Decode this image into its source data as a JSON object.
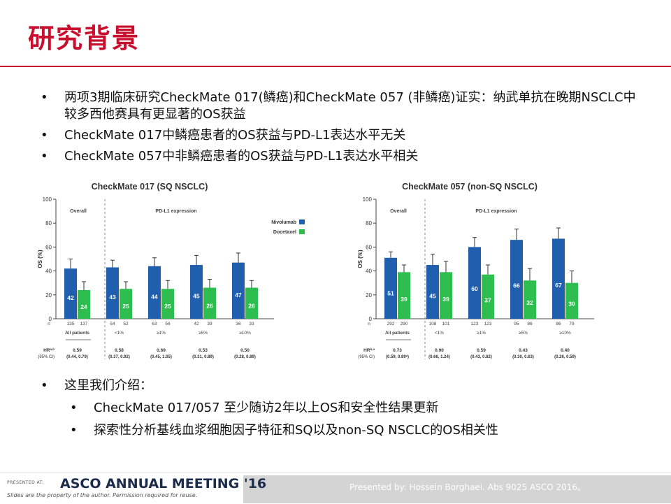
{
  "title": "研究背景",
  "bullets": [
    "两项3期临床研究CheckMate 017(鳞癌)和CheckMate 057 (非鳞癌)证实：纳武单抗在晚期NSCLC中较多西他赛具有更显著的OS获益",
    "CheckMate 017中鳞癌患者的OS获益与PD-L1表达水平无关",
    "CheckMate 057中非鳞癌患者的OS获益与PD-L1表达水平相关"
  ],
  "bullets2": {
    "intro": "这里我们介绍：",
    "items": [
      "CheckMate 017/057 至少随访2年以上OS和安全性结果更新",
      "探索性分析基线血浆细胞因子特征和SQ以及non-SQ NSCLC的OS相关性"
    ]
  },
  "footer": {
    "presented_at": "PRESENTED AT:",
    "meeting": "ASCO ANNUAL MEETING '16",
    "note": "Slides are the property of the author. Permission required for reuse.",
    "presented_by": "Presented by: Hossein Borghaei. Abs 9025 ASCO 2016。"
  },
  "chart_data": [
    {
      "type": "bar",
      "title": "CheckMate 017 (SQ NSCLC)",
      "ylabel": "OS (%)",
      "ylim": [
        0,
        100
      ],
      "yticks": [
        0,
        20,
        40,
        60,
        80,
        100
      ],
      "group_labels": {
        "overall": "Overall",
        "pdl1": "PD-L1 expression"
      },
      "categories": [
        "All patients",
        "<1%",
        "≥1%",
        "≥5%",
        "≥10%"
      ],
      "series": [
        {
          "name": "Nivolumab",
          "color": "#1f5fae",
          "values": [
            42,
            43,
            44,
            45,
            47
          ],
          "err": [
            8,
            6,
            7,
            8,
            8
          ]
        },
        {
          "name": "Docetaxel",
          "color": "#2ebd4f",
          "values": [
            24,
            25,
            25,
            26,
            26
          ],
          "err": [
            7,
            6,
            7,
            7,
            6
          ]
        }
      ],
      "n_label": "n",
      "n": [
        [
          "135",
          "137"
        ],
        [
          "54",
          "52"
        ],
        [
          "63",
          "56"
        ],
        [
          "42",
          "39"
        ],
        [
          "36",
          "33"
        ]
      ],
      "hr_label": "HR",
      "hr_sup": "a,b",
      "ci_label": "(95% CI)",
      "hr": [
        "0.59",
        "0.58",
        "0.69",
        "0.53",
        "0.50"
      ],
      "ci": [
        "(0.44, 0.79)",
        "(0.37, 0.92)",
        "(0.45, 1.05)",
        "(0.31, 0.89)",
        "(0.28, 0.89)"
      ],
      "legend": "top-right"
    },
    {
      "type": "bar",
      "title": "CheckMate 057 (non-SQ NSCLC)",
      "ylabel": "OS (%)",
      "ylim": [
        0,
        100
      ],
      "yticks": [
        0,
        20,
        40,
        60,
        80,
        100
      ],
      "group_labels": {
        "overall": "Overall",
        "pdl1": "PD-L1 expression"
      },
      "categories": [
        "All patients",
        "<1%",
        "≥1%",
        "≥5%",
        "≥10%"
      ],
      "series": [
        {
          "name": "Nivolumab",
          "color": "#1f5fae",
          "values": [
            51,
            45,
            60,
            66,
            67
          ],
          "err": [
            5,
            9,
            8,
            9,
            9
          ]
        },
        {
          "name": "Docetaxel",
          "color": "#2ebd4f",
          "values": [
            39,
            39,
            37,
            32,
            30
          ],
          "err": [
            6,
            9,
            8,
            10,
            10
          ]
        }
      ],
      "n_label": "n",
      "n": [
        [
          "292",
          "290"
        ],
        [
          "108",
          "101"
        ],
        [
          "123",
          "123"
        ],
        [
          "95",
          "86"
        ],
        [
          "86",
          "79"
        ]
      ],
      "hr_label": "HR",
      "hr_sup": "b,a",
      "ci_label": "(95% CI)",
      "hr": [
        "0.73",
        "0.90",
        "0.59",
        "0.43",
        "0.40"
      ],
      "ci": [
        "(0.59, 0.89ᵃ)",
        "(0.66, 1.24)",
        "(0.43, 0.82)",
        "(0.30, 0.63)",
        "(0.26, 0.59)"
      ]
    }
  ]
}
